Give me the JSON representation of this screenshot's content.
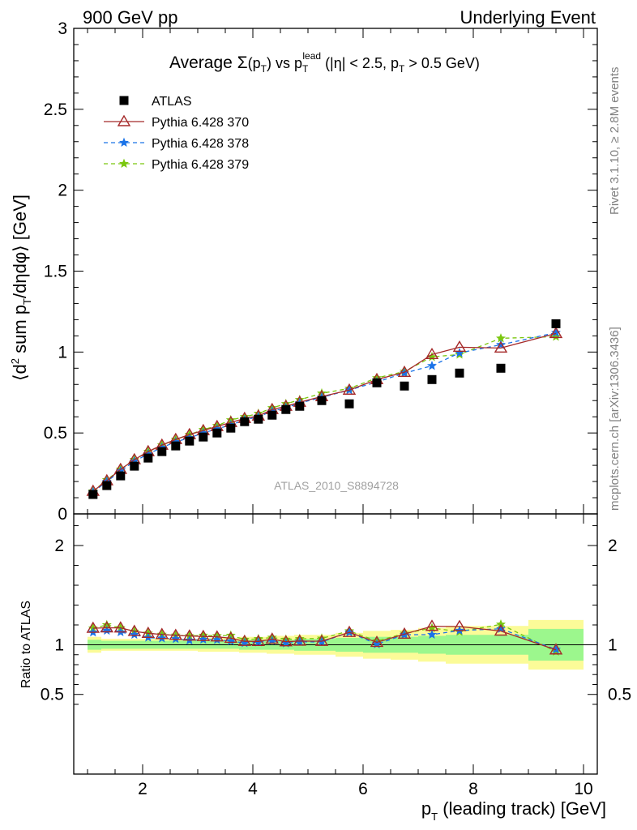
{
  "header": {
    "left": "900 GeV pp",
    "right": "Underlying Event"
  },
  "side": {
    "rivet": "Rivet 3.1.10, ≥ 2.8M events",
    "mcplots": "mcplots.cern.ch [arXiv:1306.3436]"
  },
  "watermark": "ATLAS_2010_S8894728",
  "chart_data": {
    "type": "scatter",
    "title": "Average Σ(p_T) vs p_T^lead (|η| < 2.5, p_T > 0.5 GeV)",
    "xlabel": "p_T (leading track) [GeV]",
    "ylabel": "⟨d² sum p_T/dηdφ⟩ [GeV]",
    "ratio_ylabel": "Ratio to ATLAS",
    "xlim": [
      0.75,
      10.25
    ],
    "ylim": [
      0,
      3
    ],
    "ratio_ylim": [
      0.35,
      2.25
    ],
    "x_ticks": [
      "2",
      "4",
      "6",
      "8",
      "10"
    ],
    "y_ticks": [
      "0",
      "0.5",
      "1",
      "1.5",
      "2",
      "2.5",
      "3"
    ],
    "ratio_ticks": [
      "0.5",
      "1",
      "2"
    ],
    "legend_position": "top-left",
    "x": [
      1.1,
      1.35,
      1.6,
      1.85,
      2.1,
      2.35,
      2.6,
      2.85,
      3.1,
      3.35,
      3.6,
      3.85,
      4.1,
      4.35,
      4.6,
      4.85,
      5.25,
      5.75,
      6.25,
      6.75,
      7.25,
      7.75,
      8.5,
      9.5
    ],
    "band_edges": [
      1.0,
      1.25,
      1.5,
      1.75,
      2.0,
      2.25,
      2.5,
      2.75,
      3.0,
      3.25,
      3.5,
      3.75,
      4.0,
      4.25,
      4.5,
      4.75,
      5.0,
      5.5,
      6.0,
      6.5,
      7.0,
      7.5,
      8.0,
      9.0,
      10.0
    ],
    "band_inner": [
      0.05,
      0.04,
      0.04,
      0.04,
      0.04,
      0.04,
      0.04,
      0.04,
      0.04,
      0.04,
      0.04,
      0.05,
      0.05,
      0.05,
      0.05,
      0.06,
      0.06,
      0.07,
      0.08,
      0.08,
      0.09,
      0.1,
      0.1,
      0.16
    ],
    "band_outer": [
      0.08,
      0.06,
      0.06,
      0.06,
      0.06,
      0.06,
      0.06,
      0.06,
      0.07,
      0.07,
      0.07,
      0.08,
      0.08,
      0.09,
      0.09,
      0.1,
      0.1,
      0.12,
      0.14,
      0.15,
      0.17,
      0.19,
      0.19,
      0.25
    ],
    "band_colors": {
      "inner": "#9cf78d",
      "outer": "#fbfb98"
    },
    "series": [
      {
        "name": "ATLAS",
        "marker": "square",
        "color": "#000000",
        "values": [
          0.12,
          0.175,
          0.235,
          0.295,
          0.345,
          0.385,
          0.42,
          0.45,
          0.475,
          0.5,
          0.53,
          0.57,
          0.585,
          0.61,
          0.645,
          0.665,
          0.7,
          0.68,
          0.81,
          0.79,
          0.83,
          0.87,
          0.9,
          1.175
        ]
      },
      {
        "name": "Pythia 6.428 370",
        "marker": "triangle",
        "color": "#a52a2a",
        "dash": "",
        "values": [
          0.14,
          0.205,
          0.275,
          0.335,
          0.385,
          0.425,
          0.46,
          0.49,
          0.515,
          0.54,
          0.565,
          0.59,
          0.605,
          0.645,
          0.665,
          0.69,
          0.725,
          0.765,
          0.83,
          0.875,
          0.985,
          1.03,
          1.025,
          1.115
        ]
      },
      {
        "name": "Pythia 6.428 378",
        "marker": "star",
        "color": "#1a73e8",
        "dash": "5,4",
        "values": [
          0.135,
          0.2,
          0.265,
          0.325,
          0.37,
          0.41,
          0.445,
          0.47,
          0.5,
          0.525,
          0.55,
          0.58,
          0.6,
          0.635,
          0.655,
          0.685,
          0.72,
          0.765,
          0.815,
          0.87,
          0.915,
          0.995,
          1.045,
          1.12
        ]
      },
      {
        "name": "Pythia 6.428 379",
        "marker": "star",
        "color": "#7ac70e",
        "dash": "5,4",
        "values": [
          0.14,
          0.21,
          0.275,
          0.335,
          0.385,
          0.425,
          0.46,
          0.49,
          0.52,
          0.545,
          0.58,
          0.6,
          0.62,
          0.655,
          0.68,
          0.705,
          0.745,
          0.775,
          0.84,
          0.88,
          0.97,
          0.985,
          1.085,
          1.095
        ]
      }
    ]
  }
}
